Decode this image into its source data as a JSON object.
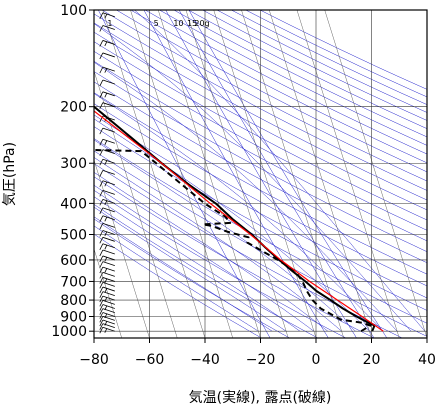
{
  "chart_data": {
    "type": "line",
    "subtype": "skew-T log-P diagram",
    "xlabel": "気温(実線), 露点(破線)",
    "ylabel": "気圧(hPa)",
    "xlim": [
      -80,
      40
    ],
    "ylim": [
      1050,
      100
    ],
    "y_scale": "log",
    "x_ticks": [
      "−80",
      "−60",
      "−40",
      "−20",
      "0",
      "20",
      "40"
    ],
    "x_tick_values": [
      -80,
      -60,
      -40,
      -20,
      0,
      20,
      40
    ],
    "y_ticks": [
      "100",
      "200",
      "300",
      "400",
      "500",
      "600",
      "700",
      "800",
      "900",
      "1000"
    ],
    "y_tick_values": [
      100,
      200,
      300,
      400,
      500,
      600,
      700,
      800,
      900,
      1000
    ],
    "mixing_ratio_labels": [
      "1",
      "5",
      "10",
      "15",
      "20g"
    ],
    "mixing_ratio_values": [
      1,
      5,
      10,
      15,
      20
    ],
    "grid": true,
    "colors": {
      "temperature": "#000000",
      "dewpoint": "#000000",
      "parcel": "#ff0000",
      "adiabats": "#2222cc",
      "isotherms": "#555555"
    },
    "series": [
      {
        "name": "気温",
        "style": "solid",
        "points": [
          {
            "p": 1000,
            "t": 21
          },
          {
            "p": 960,
            "t": 22.5
          },
          {
            "p": 935,
            "t": 20
          },
          {
            "p": 900,
            "t": 17
          },
          {
            "p": 850,
            "t": 13
          },
          {
            "p": 800,
            "t": 9.5
          },
          {
            "p": 750,
            "t": 5.5
          },
          {
            "p": 700,
            "t": 2.5
          },
          {
            "p": 650,
            "t": -1
          },
          {
            "p": 600,
            "t": -4.5
          },
          {
            "p": 550,
            "t": -8
          },
          {
            "p": 500,
            "t": -11.5
          },
          {
            "p": 450,
            "t": -16.5
          },
          {
            "p": 400,
            "t": -21
          },
          {
            "p": 350,
            "t": -28.5
          },
          {
            "p": 300,
            "t": -36
          },
          {
            "p": 250,
            "t": -44
          },
          {
            "p": 200,
            "t": -54
          },
          {
            "p": 180,
            "t": -58
          },
          {
            "p": 170,
            "t": -60
          },
          {
            "p": 150,
            "t": -62
          },
          {
            "p": 140,
            "t": -64
          },
          {
            "p": 130,
            "t": -67
          },
          {
            "p": 125,
            "t": -70
          },
          {
            "p": 115,
            "t": -71
          },
          {
            "p": 110,
            "t": -73
          },
          {
            "p": 100,
            "t": -75
          }
        ]
      },
      {
        "name": "露点",
        "style": "dashed",
        "points": [
          {
            "p": 1000,
            "t": 17
          },
          {
            "p": 960,
            "t": 21
          },
          {
            "p": 940,
            "t": 18
          },
          {
            "p": 920,
            "t": 11
          },
          {
            "p": 850,
            "t": 5
          },
          {
            "p": 800,
            "t": 3
          },
          {
            "p": 750,
            "t": 2
          },
          {
            "p": 700,
            "t": 1.5
          },
          {
            "p": 650,
            "t": 0
          },
          {
            "p": 600,
            "t": -5
          },
          {
            "p": 560,
            "t": -10
          },
          {
            "p": 530,
            "t": -14
          },
          {
            "p": 510,
            "t": -13
          },
          {
            "p": 490,
            "t": -20
          },
          {
            "p": 470,
            "t": -25
          },
          {
            "p": 465,
            "t": -28
          },
          {
            "p": 460,
            "t": -18
          },
          {
            "p": 440,
            "t": -19
          },
          {
            "p": 420,
            "t": -22
          },
          {
            "p": 400,
            "t": -25
          },
          {
            "p": 350,
            "t": -31
          },
          {
            "p": 300,
            "t": -38
          },
          {
            "p": 275,
            "t": -42
          },
          {
            "p": 270,
            "t": -81
          }
        ]
      },
      {
        "name": "parcel",
        "style": "solid-red",
        "points": [
          {
            "p": 1000,
            "t": 25
          },
          {
            "p": 900,
            "t": 19
          },
          {
            "p": 800,
            "t": 12
          },
          {
            "p": 700,
            "t": 4
          },
          {
            "p": 600,
            "t": -4
          },
          {
            "p": 500,
            "t": -12
          },
          {
            "p": 400,
            "t": -23
          },
          {
            "p": 300,
            "t": -36
          },
          {
            "p": 250,
            "t": -45
          },
          {
            "p": 200,
            "t": -56
          },
          {
            "p": 150,
            "t": -70
          }
        ]
      }
    ],
    "wind_barbs": {
      "x_temp": -72.5,
      "pressures": [
        1000,
        975,
        950,
        925,
        900,
        875,
        850,
        825,
        800,
        775,
        750,
        725,
        700,
        675,
        650,
        625,
        600,
        575,
        550,
        525,
        500,
        475,
        450,
        425,
        400,
        375,
        350,
        325,
        300,
        280,
        260,
        240,
        220,
        200,
        185,
        170,
        155,
        140,
        128,
        115,
        105
      ]
    }
  }
}
